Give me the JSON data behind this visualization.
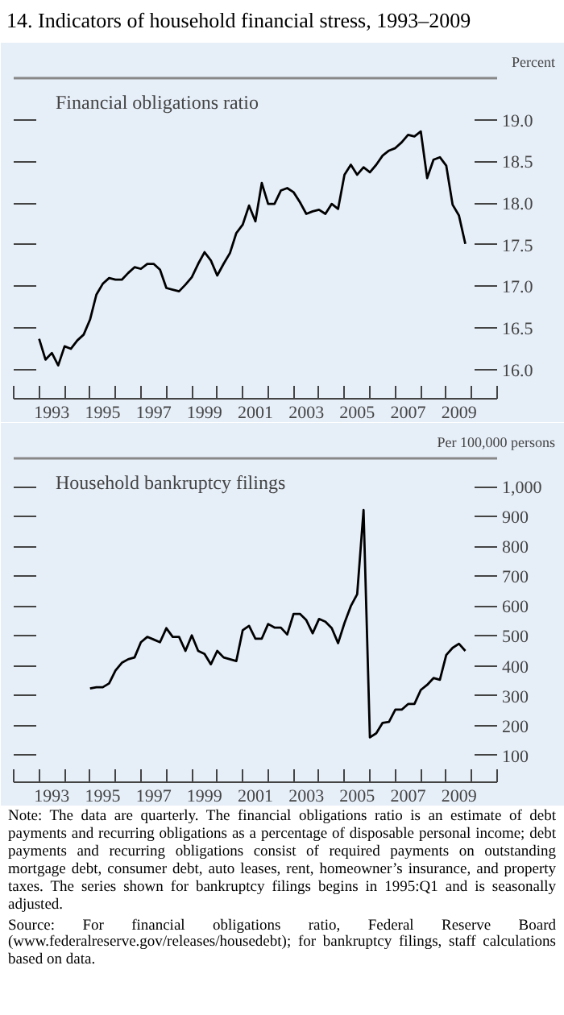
{
  "chart_data": [
    {
      "type": "line",
      "title": "14.  Indicators of household financial stress, 1993–2009",
      "subtitle": "Financial obligations ratio",
      "ylabel": "Percent",
      "grid": false,
      "x": [
        1993,
        1993.25,
        1993.5,
        1993.75,
        1994,
        1994.25,
        1994.5,
        1994.75,
        1995,
        1995.25,
        1995.5,
        1995.75,
        1996,
        1996.25,
        1996.5,
        1996.75,
        1997,
        1997.25,
        1997.5,
        1997.75,
        1998,
        1998.25,
        1998.5,
        1998.75,
        1999,
        1999.25,
        1999.5,
        1999.75,
        2000,
        2000.25,
        2000.5,
        2000.75,
        2001,
        2001.25,
        2001.5,
        2001.75,
        2002,
        2002.25,
        2002.5,
        2002.75,
        2003,
        2003.25,
        2003.5,
        2003.75,
        2004,
        2004.25,
        2004.5,
        2004.75,
        2005,
        2005.25,
        2005.5,
        2005.75,
        2006,
        2006.25,
        2006.5,
        2006.75,
        2007,
        2007.25,
        2007.5,
        2007.75,
        2008,
        2008.25,
        2008.5,
        2008.75,
        2009,
        2009.25,
        2009.5,
        2009.75
      ],
      "series": [
        {
          "color": "#000000",
          "values": [
            16.37,
            16.12,
            16.2,
            16.05,
            16.28,
            16.25,
            16.35,
            16.42,
            16.6,
            16.9,
            17.03,
            17.1,
            17.08,
            17.08,
            17.16,
            17.23,
            17.21,
            17.27,
            17.27,
            17.2,
            16.98,
            16.96,
            16.94,
            17.02,
            17.11,
            17.27,
            17.41,
            17.31,
            17.13,
            17.27,
            17.4,
            17.64,
            17.74,
            17.97,
            17.78,
            18.24,
            17.99,
            17.99,
            18.15,
            18.18,
            18.13,
            18.01,
            17.87,
            17.9,
            17.92,
            17.87,
            17.99,
            17.93,
            18.34,
            18.46,
            18.34,
            18.43,
            18.37,
            18.46,
            18.57,
            18.63,
            18.66,
            18.73,
            18.82,
            18.8,
            18.86,
            18.3,
            18.52,
            18.55,
            18.45,
            17.98,
            17.85,
            17.51
          ]
        }
      ],
      "xlim": [
        1992,
        2011
      ],
      "xticks": [
        {
          "value": 1992,
          "label": null
        },
        {
          "value": 1993,
          "label": null
        },
        {
          "value": 1994,
          "label": null
        },
        {
          "value": 1995,
          "label": null
        },
        {
          "value": 1996,
          "label": null
        },
        {
          "value": 1997,
          "label": null
        },
        {
          "value": 1998,
          "label": null
        },
        {
          "value": 1999,
          "label": null
        },
        {
          "value": 2000,
          "label": null
        },
        {
          "value": 2001,
          "label": null
        },
        {
          "value": 2002,
          "label": null
        },
        {
          "value": 2003,
          "label": null
        },
        {
          "value": 2004,
          "label": null
        },
        {
          "value": 2005,
          "label": null
        },
        {
          "value": 2006,
          "label": null
        },
        {
          "value": 2007,
          "label": null
        },
        {
          "value": 2008,
          "label": null
        },
        {
          "value": 2009,
          "label": null
        },
        {
          "value": 2010,
          "label": null
        },
        {
          "value": 2011,
          "label": null
        },
        {
          "value": 1993.5,
          "label": "1993"
        },
        {
          "value": 1995.5,
          "label": "1995"
        },
        {
          "value": 1997.5,
          "label": "1997"
        },
        {
          "value": 1999.5,
          "label": "1999"
        },
        {
          "value": 2001.5,
          "label": "2001"
        },
        {
          "value": 2003.5,
          "label": "2003"
        },
        {
          "value": 2005.5,
          "label": "2005"
        },
        {
          "value": 2007.5,
          "label": "2007"
        },
        {
          "value": 2009.5,
          "label": "2009"
        }
      ],
      "ylim": [
        15.65,
        19.5
      ],
      "yticks": [
        {
          "value": 16,
          "label": "16.0"
        },
        16.5,
        {
          "value": 17,
          "label": "17.0"
        },
        17.5,
        {
          "value": 18,
          "label": "18.0"
        },
        18.5,
        {
          "value": 19,
          "label": "19.0"
        }
      ]
    },
    {
      "type": "line",
      "title": "Household bankruptcy filings",
      "ylabel": "Per 100,000 persons",
      "grid": false,
      "x": [
        1995,
        1995.25,
        1995.5,
        1995.75,
        1996,
        1996.25,
        1996.5,
        1996.75,
        1997,
        1997.25,
        1997.5,
        1997.75,
        1998,
        1998.25,
        1998.5,
        1998.75,
        1999,
        1999.25,
        1999.5,
        1999.75,
        2000,
        2000.25,
        2000.5,
        2000.75,
        2001,
        2001.25,
        2001.5,
        2001.75,
        2002,
        2002.25,
        2002.5,
        2002.75,
        2003,
        2003.25,
        2003.5,
        2003.75,
        2004,
        2004.25,
        2004.5,
        2004.75,
        2005,
        2005.25,
        2005.5,
        2005.75,
        2006,
        2006.25,
        2006.5,
        2006.75,
        2007,
        2007.25,
        2007.5,
        2007.75,
        2008,
        2008.25,
        2008.5,
        2008.75,
        2009,
        2009.25,
        2009.5,
        2009.75
      ],
      "series": [
        {
          "color": "#000000",
          "values": [
            324,
            328,
            328,
            341,
            384,
            410,
            422,
            428,
            479,
            497,
            488,
            479,
            526,
            497,
            497,
            450,
            502,
            450,
            440,
            405,
            450,
            428,
            422,
            416,
            519,
            534,
            491,
            491,
            540,
            528,
            528,
            505,
            574,
            574,
            553,
            509,
            557,
            548,
            526,
            476,
            543,
            600,
            640,
            922,
            160,
            174,
            209,
            212,
            253,
            253,
            272,
            272,
            319,
            336,
            359,
            353,
            436,
            460,
            474,
            450
          ]
        }
      ],
      "xlim": [
        1992,
        2011
      ],
      "xticks": [
        {
          "value": 1992,
          "label": null
        },
        {
          "value": 1993,
          "label": null
        },
        {
          "value": 1994,
          "label": null
        },
        {
          "value": 1995,
          "label": null
        },
        {
          "value": 1996,
          "label": null
        },
        {
          "value": 1997,
          "label": null
        },
        {
          "value": 1998,
          "label": null
        },
        {
          "value": 1999,
          "label": null
        },
        {
          "value": 2000,
          "label": null
        },
        {
          "value": 2001,
          "label": null
        },
        {
          "value": 2002,
          "label": null
        },
        {
          "value": 2003,
          "label": null
        },
        {
          "value": 2004,
          "label": null
        },
        {
          "value": 2005,
          "label": null
        },
        {
          "value": 2006,
          "label": null
        },
        {
          "value": 2007,
          "label": null
        },
        {
          "value": 2008,
          "label": null
        },
        {
          "value": 2009,
          "label": null
        },
        {
          "value": 2010,
          "label": null
        },
        {
          "value": 2011,
          "label": null
        },
        {
          "value": 1993.5,
          "label": "1993"
        },
        {
          "value": 1995.5,
          "label": "1995"
        },
        {
          "value": 1997.5,
          "label": "1997"
        },
        {
          "value": 1999.5,
          "label": "1999"
        },
        {
          "value": 2001.5,
          "label": "2001"
        },
        {
          "value": 2003.5,
          "label": "2003"
        },
        {
          "value": 2005.5,
          "label": "2005"
        },
        {
          "value": 2007.5,
          "label": "2007"
        },
        {
          "value": 2009.5,
          "label": "2009"
        }
      ],
      "ylim": [
        10,
        1095
      ],
      "yticks": [
        100,
        200,
        300,
        400,
        500,
        600,
        700,
        800,
        900,
        {
          "value": 1000,
          "label": "1,000"
        }
      ],
      "annotations": [
        "Note: The data are quarterly. The financial obligations ratio is an estimate of debt payments and recurring obligations as a percentage of disposable personal income; debt payments and recurring obligations consist of required payments on outstanding mortgage debt, consumer debt, auto leases, rent, homeowner’s insurance, and property taxes. The series shown for bankruptcy filings begins in 1995:Q1 and is seasonally adjusted.",
        "Source: For financial obligations ratio, Federal Reserve Board (www.federalreserve.gov/releases/housedebt); for bankruptcy filings, staff calculations based on data."
      ]
    }
  ]
}
